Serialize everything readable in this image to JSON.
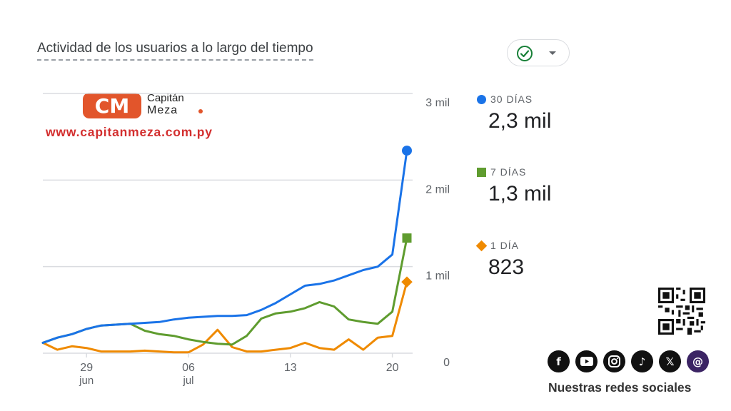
{
  "header": {
    "title": "Actividad de los usuarios a lo largo del tiempo",
    "status_icon": "check-circle-icon",
    "dropdown_icon": "caret-down-icon"
  },
  "brand": {
    "logo_letters": "CM",
    "name_line1": "Capitán",
    "name_line2": "Meza",
    "website": "www.capitanmeza.com.py",
    "colors": {
      "logo": "#e2552b",
      "url": "#d32f2f"
    }
  },
  "legend": [
    {
      "label": "30 DÍAS",
      "value": "2,3 mil",
      "marker": "circle",
      "color": "#1a73e8"
    },
    {
      "label": "7 DÍAS",
      "value": "1,3 mil",
      "marker": "square",
      "color": "#5f9c2f"
    },
    {
      "label": "1 DÍA",
      "value": "823",
      "marker": "diamond",
      "color": "#ef8a00"
    }
  ],
  "footer": {
    "caption": "Nuestras redes sociales",
    "qr_icon": "qr-code-icon",
    "social_icons": [
      "facebook-icon",
      "youtube-icon",
      "instagram-icon",
      "tiktok-icon",
      "x-icon",
      "threads-icon"
    ]
  },
  "chart_data": {
    "type": "line",
    "x_labels": [
      {
        "day": 3,
        "text": "29",
        "sub": "jun"
      },
      {
        "day": 10,
        "text": "06",
        "sub": "jul"
      },
      {
        "day": 17,
        "text": "13",
        "sub": ""
      },
      {
        "day": 24,
        "text": "20",
        "sub": ""
      }
    ],
    "xlim": [
      0,
      24.5
    ],
    "y_ticks": [
      {
        "value": 0,
        "label": "0"
      },
      {
        "value": 1000,
        "label": "1 mil"
      },
      {
        "value": 2000,
        "label": "2 mil"
      },
      {
        "value": 3000,
        "label": "3 mil"
      }
    ],
    "ylim": [
      0,
      3000
    ],
    "grid": true,
    "series": [
      {
        "name": "30 DÍAS",
        "color": "#1a73e8",
        "x": [
          0,
          1,
          2,
          3,
          4,
          5,
          6,
          7,
          8,
          9,
          10,
          11,
          12,
          13,
          14,
          15,
          16,
          17,
          18,
          19,
          20,
          21,
          22,
          23,
          24,
          25
        ],
        "values": [
          120,
          180,
          220,
          280,
          320,
          330,
          340,
          350,
          360,
          390,
          410,
          420,
          430,
          430,
          440,
          500,
          580,
          680,
          780,
          800,
          840,
          900,
          960,
          1000,
          1140,
          2340
        ]
      },
      {
        "name": "7 DÍAS",
        "color": "#5f9c2f",
        "x": [
          0,
          1,
          2,
          3,
          4,
          5,
          6,
          7,
          8,
          9,
          10,
          11,
          12,
          13,
          14,
          15,
          16,
          17,
          18,
          19,
          20,
          21,
          22,
          23,
          24,
          25
        ],
        "values": [
          120,
          180,
          220,
          280,
          320,
          330,
          340,
          260,
          220,
          200,
          160,
          130,
          110,
          100,
          200,
          400,
          460,
          480,
          520,
          590,
          540,
          390,
          360,
          340,
          480,
          1330
        ]
      },
      {
        "name": "1 DÍA",
        "color": "#ef8a00",
        "x": [
          0,
          1,
          2,
          3,
          4,
          5,
          6,
          7,
          8,
          9,
          10,
          11,
          12,
          13,
          14,
          15,
          16,
          17,
          18,
          19,
          20,
          21,
          22,
          23,
          24,
          25
        ],
        "values": [
          120,
          40,
          80,
          60,
          20,
          20,
          20,
          30,
          20,
          10,
          10,
          100,
          270,
          70,
          20,
          20,
          40,
          60,
          120,
          60,
          40,
          160,
          40,
          180,
          200,
          823
        ]
      }
    ]
  }
}
